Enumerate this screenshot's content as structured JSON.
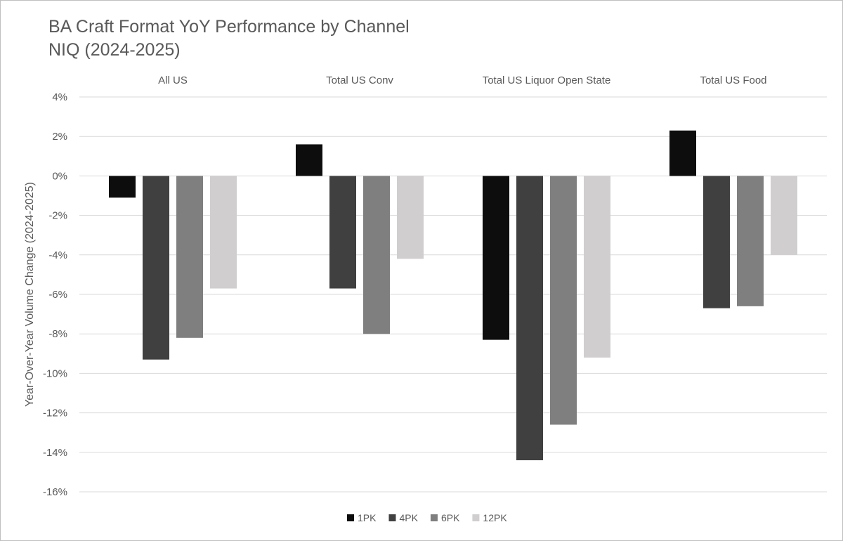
{
  "chart_data": {
    "type": "bar",
    "title_lines": [
      "BA Craft Format YoY Performance by Channel",
      "NIQ (2024-2025)"
    ],
    "ylabel": "Year-Over-Year Volume Change (2024-2025)",
    "xlabel": "",
    "categories": [
      "All US",
      "Total US Conv",
      "Total US Liquor Open State",
      "Total US Food"
    ],
    "category_axis_position": "top",
    "series": [
      {
        "name": "1PK",
        "color": "#0d0d0d",
        "values": [
          -1.1,
          1.6,
          -8.3,
          2.3
        ]
      },
      {
        "name": "4PK",
        "color": "#404040",
        "values": [
          -9.3,
          -5.7,
          -14.4,
          -6.7
        ]
      },
      {
        "name": "6PK",
        "color": "#7f7f7f",
        "values": [
          -8.2,
          -8.0,
          -12.6,
          -6.6
        ]
      },
      {
        "name": "12PK",
        "color": "#d0cece",
        "values": [
          -5.7,
          -4.2,
          -9.2,
          -4.0
        ]
      }
    ],
    "ylim": [
      -16,
      4
    ],
    "yticks": [
      4,
      2,
      0,
      -2,
      -4,
      -6,
      -8,
      -10,
      -12,
      -14,
      -16
    ],
    "ytick_labels": [
      "4%",
      "2%",
      "0%",
      "-2%",
      "-4%",
      "-6%",
      "-8%",
      "-10%",
      "-12%",
      "-14%",
      "-16%"
    ],
    "grid": true,
    "legend_position": "bottom"
  }
}
